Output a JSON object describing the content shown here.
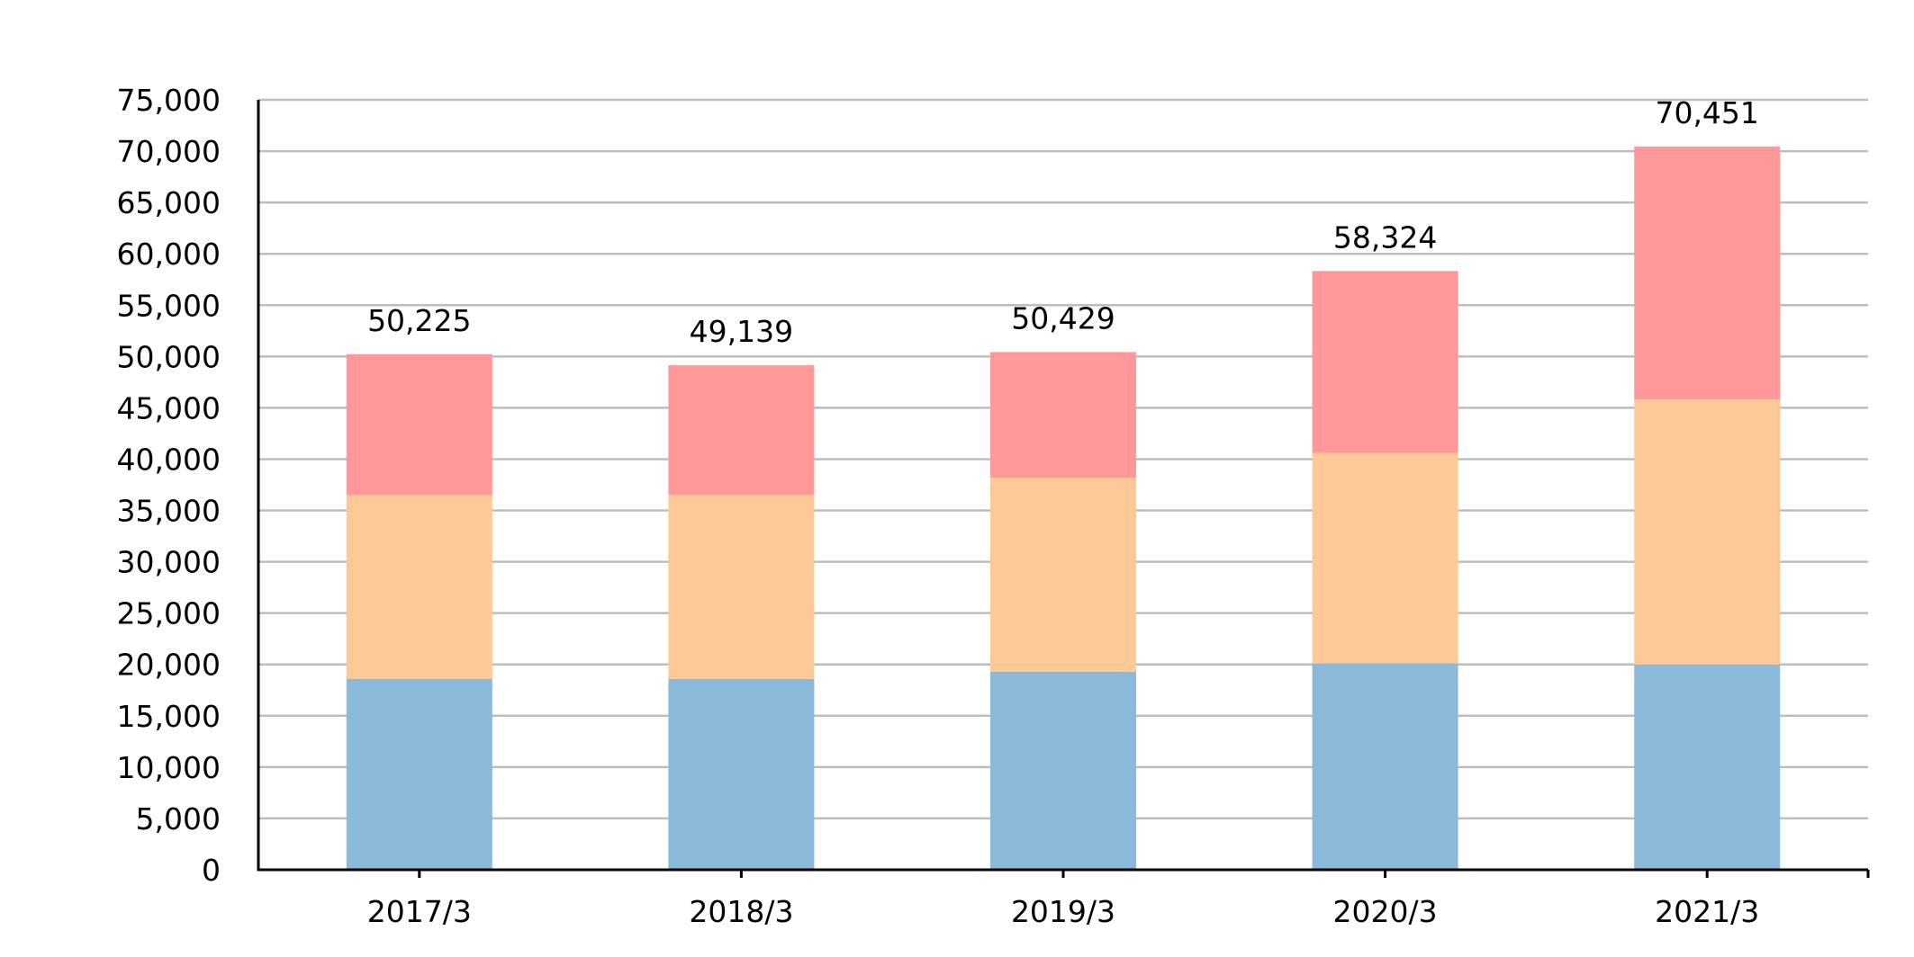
{
  "chart_data": {
    "type": "bar",
    "stacked": true,
    "categories": [
      "2017/3",
      "2018/3",
      "2019/3",
      "2020/3",
      "2021/3"
    ],
    "series": [
      {
        "values": [
          18600,
          18600,
          19300,
          20100,
          20000
        ],
        "color": "#8ab9da"
      },
      {
        "values": [
          17900,
          17900,
          18900,
          20500,
          25800
        ],
        "color": "#fdc996"
      },
      {
        "values": [
          13725,
          12639,
          12229,
          17724,
          24651
        ],
        "color": "#fe9899"
      }
    ],
    "totals": [
      50225,
      49139,
      50429,
      58324,
      70451
    ],
    "total_labels": [
      "50,225",
      "49,139",
      "50,429",
      "58,324",
      "70,451"
    ],
    "ylim": [
      0,
      75000
    ],
    "y_ticks": [
      0,
      5000,
      10000,
      15000,
      20000,
      25000,
      30000,
      35000,
      40000,
      45000,
      50000,
      55000,
      60000,
      65000,
      70000,
      75000
    ],
    "y_tick_labels": [
      "0",
      "5,000",
      "10,000",
      "15,000",
      "20,000",
      "25,000",
      "30,000",
      "35,000",
      "40,000",
      "45,000",
      "50,000",
      "55,000",
      "60,000",
      "65,000",
      "70,000",
      "75,000"
    ],
    "grid": true,
    "legend": "none",
    "title": "",
    "xlabel": "",
    "ylabel": ""
  }
}
